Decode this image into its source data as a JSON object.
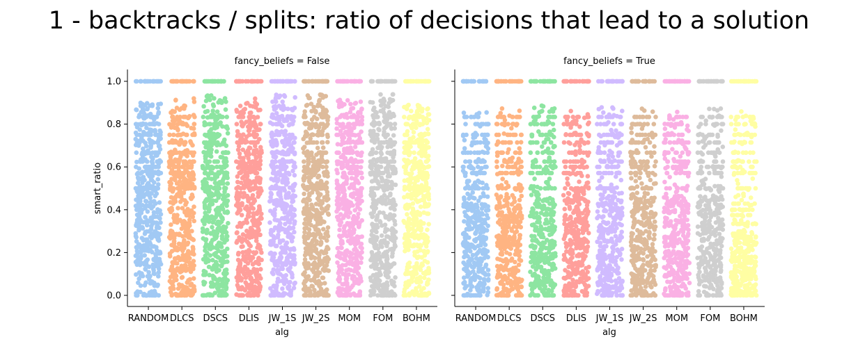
{
  "chart_data": {
    "type": "strip",
    "title": "1 - backtracks / splits: ratio of decisions that lead to a solution",
    "xlabel": "alg",
    "ylabel": "smart_ratio",
    "ylim": [
      -0.05,
      1.05
    ],
    "yticks": [
      "0.0",
      "0.2",
      "0.4",
      "0.6",
      "0.8",
      "1.0"
    ],
    "ytick_values": [
      0.0,
      0.2,
      0.4,
      0.6,
      0.8,
      1.0
    ],
    "categories": [
      "RANDOM",
      "DLCS",
      "DSCS",
      "DLIS",
      "JW_1S",
      "JW_2S",
      "MOM",
      "FOM",
      "BOHM"
    ],
    "colors": [
      "#a1c9f4",
      "#ffb482",
      "#8de5a1",
      "#ff9f9b",
      "#d0bbff",
      "#debb9b",
      "#fab0e4",
      "#cfcfcf",
      "#fffea3"
    ],
    "grid": false,
    "panels": [
      {
        "title": "fancy_beliefs = False",
        "series": [
          {
            "category": "RANDOM",
            "dense_range": [
              0.0,
              0.5
            ],
            "mid_range": [
              0.5,
              0.9
            ],
            "max_value": 1.0
          },
          {
            "category": "DLCS",
            "dense_range": [
              0.0,
              0.5
            ],
            "mid_range": [
              0.5,
              0.92
            ],
            "max_value": 1.0
          },
          {
            "category": "DSCS",
            "dense_range": [
              0.0,
              0.5
            ],
            "mid_range": [
              0.5,
              0.94
            ],
            "max_value": 1.0
          },
          {
            "category": "DLIS",
            "dense_range": [
              0.0,
              0.5
            ],
            "mid_range": [
              0.5,
              0.92
            ],
            "max_value": 1.0
          },
          {
            "category": "JW_1S",
            "dense_range": [
              0.0,
              0.5
            ],
            "mid_range": [
              0.5,
              0.94
            ],
            "max_value": 1.0
          },
          {
            "category": "JW_2S",
            "dense_range": [
              0.0,
              0.5
            ],
            "mid_range": [
              0.5,
              0.94
            ],
            "max_value": 1.0
          },
          {
            "category": "MOM",
            "dense_range": [
              0.0,
              0.5
            ],
            "mid_range": [
              0.5,
              0.92
            ],
            "max_value": 1.0
          },
          {
            "category": "FOM",
            "dense_range": [
              0.0,
              0.5
            ],
            "mid_range": [
              0.5,
              0.94
            ],
            "max_value": 1.0
          },
          {
            "category": "BOHM",
            "dense_range": [
              0.0,
              0.5
            ],
            "mid_range": [
              0.5,
              0.89
            ],
            "max_value": 1.0
          }
        ]
      },
      {
        "title": "fancy_beliefs = True",
        "series": [
          {
            "category": "RANDOM",
            "dense_range": [
              0.0,
              0.46
            ],
            "mid_range": [
              0.46,
              0.86
            ],
            "max_value": 1.0
          },
          {
            "category": "DLCS",
            "dense_range": [
              0.0,
              0.46
            ],
            "mid_range": [
              0.46,
              0.88
            ],
            "max_value": 1.0
          },
          {
            "category": "DSCS",
            "dense_range": [
              0.0,
              0.46
            ],
            "mid_range": [
              0.46,
              0.89
            ],
            "max_value": 1.0
          },
          {
            "category": "DLIS",
            "dense_range": [
              0.0,
              0.46
            ],
            "mid_range": [
              0.46,
              0.88
            ],
            "max_value": 1.0
          },
          {
            "category": "JW_1S",
            "dense_range": [
              0.0,
              0.46
            ],
            "mid_range": [
              0.46,
              0.88
            ],
            "max_value": 1.0
          },
          {
            "category": "JW_2S",
            "dense_range": [
              0.0,
              0.46
            ],
            "mid_range": [
              0.46,
              0.88
            ],
            "max_value": 1.0
          },
          {
            "category": "MOM",
            "dense_range": [
              0.0,
              0.46
            ],
            "mid_range": [
              0.46,
              0.88
            ],
            "max_value": 1.0
          },
          {
            "category": "FOM",
            "dense_range": [
              0.0,
              0.46
            ],
            "mid_range": [
              0.46,
              0.89
            ],
            "max_value": 1.0
          },
          {
            "category": "BOHM",
            "dense_range": [
              0.0,
              0.3
            ],
            "mid_range": [
              0.3,
              0.86
            ],
            "max_value": 1.0
          }
        ]
      }
    ]
  }
}
